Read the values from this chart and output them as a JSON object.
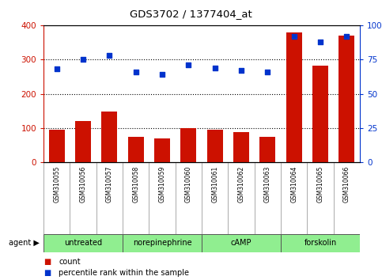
{
  "title": "GDS3702 / 1377404_at",
  "samples": [
    "GSM310055",
    "GSM310056",
    "GSM310057",
    "GSM310058",
    "GSM310059",
    "GSM310060",
    "GSM310061",
    "GSM310062",
    "GSM310063",
    "GSM310064",
    "GSM310065",
    "GSM310066"
  ],
  "counts": [
    95,
    120,
    148,
    75,
    70,
    100,
    95,
    88,
    75,
    380,
    282,
    370
  ],
  "percentile_ranks": [
    68,
    75,
    78,
    66,
    64,
    71,
    69,
    67,
    66,
    92,
    88,
    92
  ],
  "agents": [
    {
      "label": "untreated",
      "start": 0,
      "end": 3
    },
    {
      "label": "norepinephrine",
      "start": 3,
      "end": 6
    },
    {
      "label": "cAMP",
      "start": 6,
      "end": 9
    },
    {
      "label": "forskolin",
      "start": 9,
      "end": 12
    }
  ],
  "bar_color": "#cc1100",
  "dot_color": "#0033cc",
  "left_axis_color": "#cc1100",
  "right_axis_color": "#0033cc",
  "ylim_left": [
    0,
    400
  ],
  "ylim_right": [
    0,
    100
  ],
  "yticks_left": [
    0,
    100,
    200,
    300,
    400
  ],
  "ytick_labels_right": [
    "0",
    "25",
    "50",
    "75",
    "100%"
  ],
  "yticks_right": [
    0,
    25,
    50,
    75,
    100
  ],
  "background_color": "#ffffff",
  "grid_color": "#000000",
  "xlabel_area_color": "#c8c8c8",
  "agent_row_color": "#90ee90"
}
